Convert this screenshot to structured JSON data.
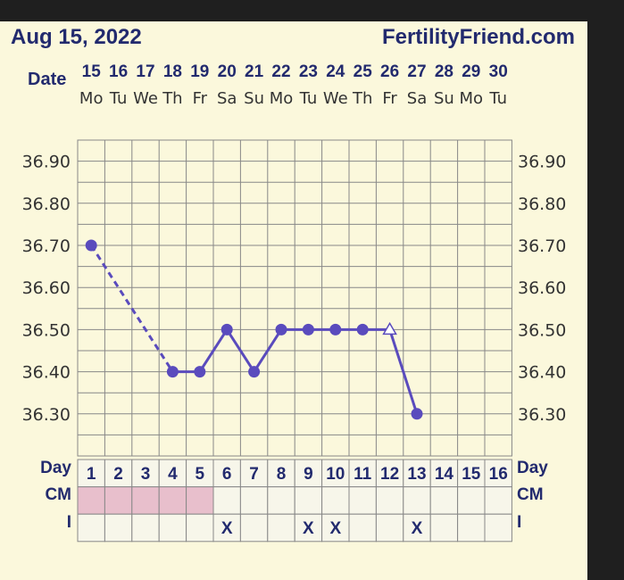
{
  "header": {
    "date": "Aug 15, 2022",
    "site": "FertilityFriend.com"
  },
  "labels": {
    "date": "Date",
    "day": "Day",
    "cm": "CM",
    "i": "I"
  },
  "colors": {
    "line": "#5a4bbd",
    "text": "#222a6e",
    "cm_pink": "#e8bfcc",
    "grid": "#888888"
  },
  "chart_data": {
    "type": "line",
    "dates": [
      "15",
      "16",
      "17",
      "18",
      "19",
      "20",
      "21",
      "22",
      "23",
      "24",
      "25",
      "26",
      "27",
      "28",
      "29",
      "30"
    ],
    "weekdays": [
      "Mo",
      "Tu",
      "We",
      "Th",
      "Fr",
      "Sa",
      "Su",
      "Mo",
      "Tu",
      "We",
      "Th",
      "Fr",
      "Sa",
      "Su",
      "Mo",
      "Tu"
    ],
    "days": [
      "1",
      "2",
      "3",
      "4",
      "5",
      "6",
      "7",
      "8",
      "9",
      "10",
      "11",
      "12",
      "13",
      "14",
      "15",
      "16"
    ],
    "yticks": [
      "36.90",
      "36.80",
      "36.70",
      "36.60",
      "36.50",
      "36.40",
      "36.30"
    ],
    "ylim": [
      36.3,
      36.9
    ],
    "points": [
      {
        "day": 1,
        "temp": 36.7
      },
      {
        "day": 4,
        "temp": 36.4
      },
      {
        "day": 5,
        "temp": 36.4
      },
      {
        "day": 6,
        "temp": 36.5
      },
      {
        "day": 7,
        "temp": 36.4
      },
      {
        "day": 8,
        "temp": 36.5
      },
      {
        "day": 9,
        "temp": 36.5
      },
      {
        "day": 10,
        "temp": 36.5
      },
      {
        "day": 11,
        "temp": 36.5
      },
      {
        "day": 12,
        "temp": 36.5,
        "marker": "open-triangle"
      },
      {
        "day": 13,
        "temp": 36.3
      }
    ],
    "dashed_segment": [
      1,
      4
    ],
    "cm_filled_days": [
      1,
      2,
      3,
      4,
      5
    ],
    "intercourse_days": [
      6,
      9,
      10,
      13
    ],
    "intercourse_mark": "X"
  }
}
